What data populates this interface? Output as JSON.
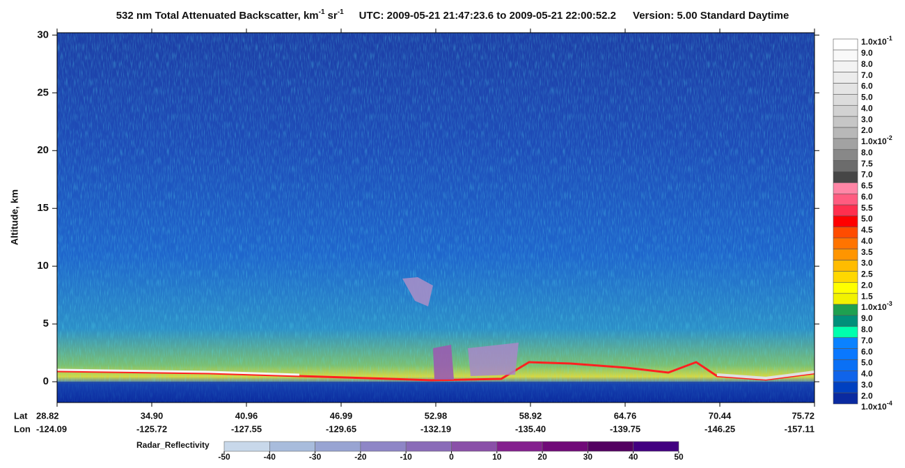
{
  "chart_data": {
    "type": "curtain",
    "title": {
      "product": "532 nm Total Attenuated Backscatter, km",
      "product_sup1": "-1",
      "product_unit2": "sr",
      "product_sup2": "-1",
      "time": "UTC:  2009-05-21 21:47:23.6  to  2009-05-21 22:00:52.2",
      "version": "Version: 5.00  Standard  Daytime"
    },
    "y_label": "Altitude, km",
    "ylim": [
      -1.8,
      30.2
    ],
    "yticks": [
      0,
      5,
      10,
      15,
      20,
      25,
      30
    ],
    "x_row_labels": [
      "Lat",
      "Lon"
    ],
    "x_ticks": [
      {
        "lat": "28.82",
        "lon": "-124.09"
      },
      {
        "lat": "34.90",
        "lon": "-125.72"
      },
      {
        "lat": "40.96",
        "lon": "-127.55"
      },
      {
        "lat": "46.99",
        "lon": "-129.65"
      },
      {
        "lat": "52.98",
        "lon": "-132.19"
      },
      {
        "lat": "58.92",
        "lon": "-135.40"
      },
      {
        "lat": "64.76",
        "lon": "-139.75"
      },
      {
        "lat": "70.44",
        "lon": "-146.25"
      },
      {
        "lat": "75.72",
        "lon": "-157.11"
      }
    ],
    "colorbar": {
      "labels": [
        {
          "text": "1.0x10",
          "sup": "-1"
        },
        "9.0",
        "8.0",
        "7.0",
        "6.0",
        "5.0",
        "4.0",
        "3.0",
        "2.0",
        {
          "text": "1.0x10",
          "sup": "-2"
        },
        "8.0",
        "7.5",
        "7.0",
        "6.5",
        "6.0",
        "5.5",
        "5.0",
        "4.5",
        "4.0",
        "3.5",
        "3.0",
        "2.5",
        "2.0",
        "1.5",
        {
          "text": "1.0x10",
          "sup": "-3"
        },
        "9.0",
        "8.0",
        "7.0",
        "6.0",
        "5.0",
        "4.0",
        "3.0",
        "2.0",
        {
          "text": "1.0x10",
          "sup": "-4"
        }
      ],
      "colors": [
        "#ffffff",
        "#f9f9f9",
        "#f3f3f3",
        "#ececec",
        "#e4e4e4",
        "#dcdcdc",
        "#d2d2d2",
        "#c6c6c6",
        "#b8b8b8",
        "#a2a2a2",
        "#888888",
        "#6c6c6c",
        "#464646",
        "#ff86a6",
        "#ff5c80",
        "#ff2f4e",
        "#ff0000",
        "#ff4c00",
        "#ff7400",
        "#ff9500",
        "#ffbc00",
        "#ffd800",
        "#ffff00",
        "#f2f200",
        "#1ea050",
        "#00907a",
        "#00ffae",
        "#0a82ff",
        "#0a78ff",
        "#0a70f5",
        "#1064ea",
        "#0040c0",
        "#0a2aa0"
      ]
    },
    "radar": {
      "label": "Radar_Reflectivity",
      "xlim": [
        -50,
        50
      ],
      "ticks": [
        -50,
        -40,
        -30,
        -20,
        -10,
        0,
        10,
        20,
        30,
        40,
        50
      ],
      "colors": [
        "#c8d8ea",
        "#a8bcdc",
        "#98a4d2",
        "#8e86c6",
        "#8a6cb8",
        "#8a50a8",
        "#84208e",
        "#700a78",
        "#520060",
        "#420080"
      ]
    }
  }
}
